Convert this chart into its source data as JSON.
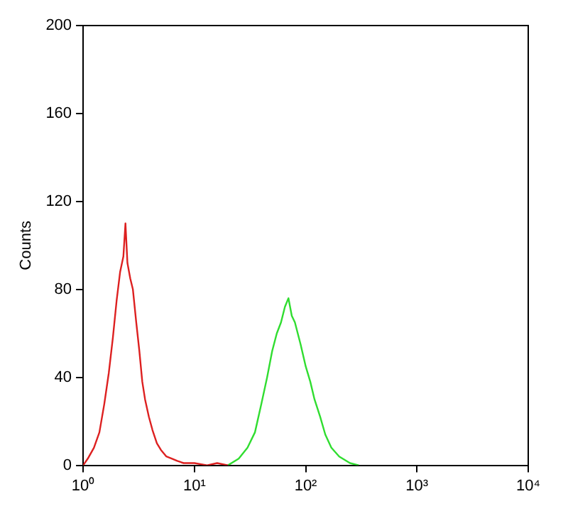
{
  "chart_data": {
    "type": "line",
    "ylabel": "Counts",
    "log": "x",
    "xlim": [
      1,
      10000
    ],
    "xticks": [
      {
        "value": 1,
        "label": "10⁰"
      },
      {
        "value": 10,
        "label": "10¹"
      },
      {
        "value": 100,
        "label": "10²"
      },
      {
        "value": 1000,
        "label": "10³"
      },
      {
        "value": 10000,
        "label": "10⁴"
      }
    ],
    "ylim": [
      0,
      200
    ],
    "yticks": [
      0,
      40,
      80,
      120,
      160,
      200
    ],
    "grid": false,
    "legend": false,
    "marker": "none",
    "line_style": "solid",
    "series": [
      {
        "color": "#dd2020",
        "x": [
          1,
          1.1,
          1.25,
          1.4,
          1.55,
          1.7,
          1.85,
          2,
          2.15,
          2.3,
          2.4,
          2.5,
          2.65,
          2.8,
          3,
          3.2,
          3.4,
          3.6,
          3.9,
          4.2,
          4.6,
          5,
          5.6,
          6.3,
          7,
          8,
          10,
          13,
          16,
          20
        ],
        "values": [
          0,
          3,
          8,
          15,
          28,
          42,
          58,
          75,
          88,
          95,
          110,
          92,
          85,
          80,
          65,
          52,
          38,
          30,
          22,
          16,
          10,
          7,
          4,
          3,
          2,
          1,
          1,
          0,
          1,
          0
        ]
      },
      {
        "color": "#30dd30",
        "x": [
          20,
          25,
          30,
          35,
          40,
          45,
          50,
          55,
          60,
          65,
          70,
          75,
          80,
          90,
          100,
          110,
          120,
          135,
          150,
          170,
          200,
          250,
          300
        ],
        "values": [
          0,
          3,
          8,
          15,
          28,
          40,
          52,
          60,
          65,
          72,
          76,
          68,
          65,
          55,
          45,
          38,
          30,
          22,
          14,
          8,
          4,
          1,
          0
        ]
      }
    ]
  }
}
